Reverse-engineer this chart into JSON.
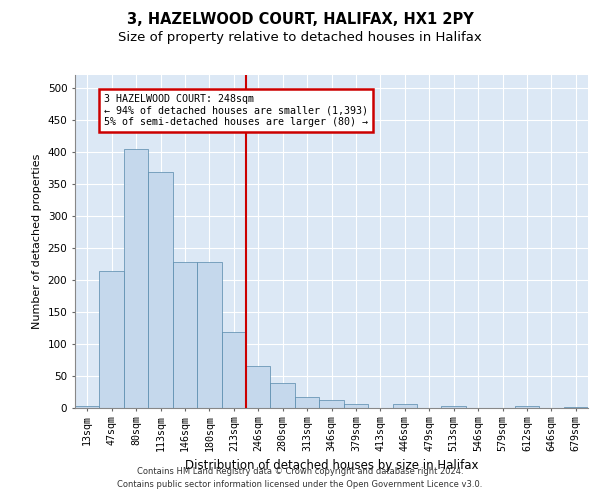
{
  "title_line1": "3, HAZELWOOD COURT, HALIFAX, HX1 2PY",
  "title_line2": "Size of property relative to detached houses in Halifax",
  "xlabel": "Distribution of detached houses by size in Halifax",
  "ylabel": "Number of detached properties",
  "bar_color": "#c5d8ec",
  "bar_edge_color": "#5588aa",
  "grid_color": "#d0dff0",
  "annotation_text_line1": "3 HAZELWOOD COURT: 248sqm",
  "annotation_text_line2": "← 94% of detached houses are smaller (1,393)",
  "annotation_text_line3": "5% of semi-detached houses are larger (80) →",
  "annotation_box_edge": "#cc0000",
  "annotation_line_color": "#cc0000",
  "footer1": "Contains HM Land Registry data © Crown copyright and database right 2024.",
  "footer2": "Contains public sector information licensed under the Open Government Licence v3.0.",
  "categories": [
    "13sqm",
    "47sqm",
    "80sqm",
    "113sqm",
    "146sqm",
    "180sqm",
    "213sqm",
    "246sqm",
    "280sqm",
    "313sqm",
    "346sqm",
    "379sqm",
    "413sqm",
    "446sqm",
    "479sqm",
    "513sqm",
    "546sqm",
    "579sqm",
    "612sqm",
    "646sqm",
    "679sqm"
  ],
  "values": [
    2,
    213,
    404,
    369,
    228,
    228,
    118,
    65,
    38,
    17,
    12,
    6,
    0,
    6,
    0,
    2,
    0,
    0,
    2,
    0,
    1
  ],
  "ylim": [
    0,
    520
  ],
  "yticks": [
    0,
    50,
    100,
    150,
    200,
    250,
    300,
    350,
    400,
    450,
    500
  ],
  "background_color": "#dce8f5",
  "fig_background": "#ffffff"
}
